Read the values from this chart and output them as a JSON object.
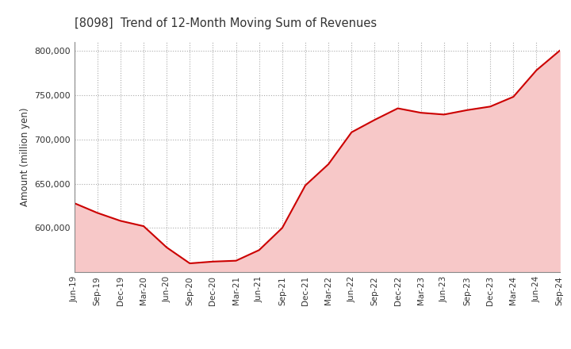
{
  "title": "[8098]  Trend of 12-Month Moving Sum of Revenues",
  "ylabel": "Amount (million yen)",
  "line_color": "#cc0000",
  "fill_color": "#f7c8c8",
  "background_color": "#ffffff",
  "grid_color": "#aaaaaa",
  "ylim": [
    550000,
    810000
  ],
  "yticks": [
    600000,
    650000,
    700000,
    750000,
    800000
  ],
  "x_labels": [
    "Jun-19",
    "Sep-19",
    "Dec-19",
    "Mar-20",
    "Jun-20",
    "Sep-20",
    "Dec-20",
    "Mar-21",
    "Jun-21",
    "Sep-21",
    "Dec-21",
    "Mar-22",
    "Jun-22",
    "Sep-22",
    "Dec-22",
    "Mar-23",
    "Jun-23",
    "Sep-23",
    "Dec-23",
    "Mar-24",
    "Jun-24",
    "Sep-24"
  ],
  "values": [
    628000,
    617000,
    608000,
    602000,
    578000,
    560000,
    562000,
    563000,
    575000,
    600000,
    648000,
    672000,
    708000,
    722000,
    735000,
    730000,
    728000,
    733000,
    737000,
    748000,
    778000,
    800000
  ]
}
